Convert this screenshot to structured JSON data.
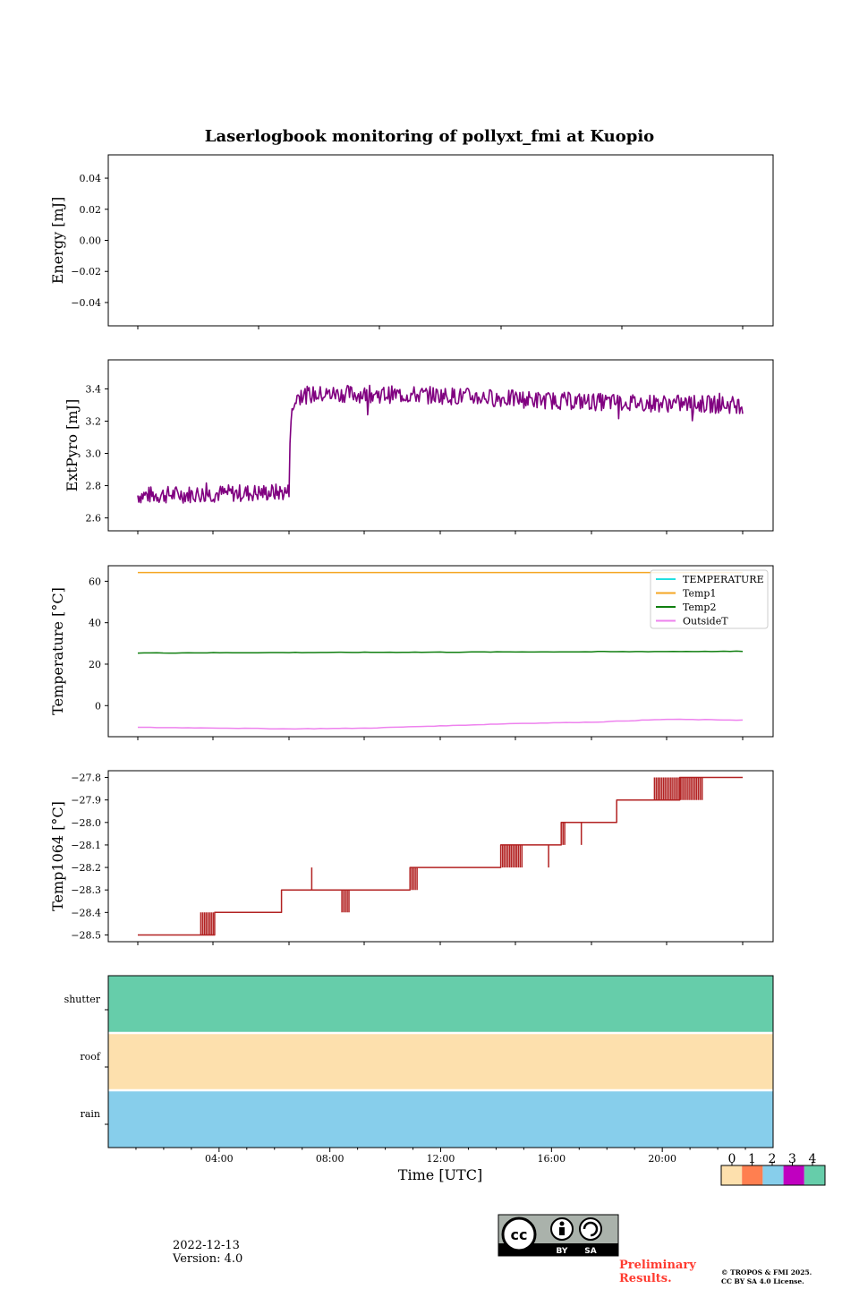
{
  "figure": {
    "title": "Laserlogbook monitoring of pollyxt_fmi at Kuopio",
    "date": "2022-12-13",
    "version": "Version: 4.0",
    "preliminary": "Preliminary Results.",
    "copyright_line1": "© TROPOS & FMI 2025.",
    "copyright_line2": "CC BY SA 4.0 License.",
    "license_badge": {
      "symbol": "cc",
      "labels": [
        "BY",
        "SA"
      ]
    }
  },
  "chart_data": [
    {
      "id": "energy",
      "type": "line",
      "title": "",
      "ylabel": "Energy [mJ]",
      "ylim": [
        -0.055,
        0.055
      ],
      "yticks": [
        0.04,
        0.02,
        0.0,
        -0.02,
        -0.04
      ],
      "yticklabels": [
        "0.04",
        "0.02",
        "0.00",
        "−0.02",
        "−0.04"
      ],
      "series": []
    },
    {
      "id": "extpyro",
      "type": "line",
      "ylabel": "ExtPyro [mJ]",
      "ylim": [
        2.52,
        3.58
      ],
      "yticks": [
        2.6,
        2.8,
        3.0,
        3.2,
        3.4
      ],
      "yticklabels": [
        "2.6",
        "2.8",
        "3.0",
        "3.2",
        "3.4"
      ],
      "series": [
        {
          "name": "ExtPyro",
          "color": "#800080",
          "x": [
            0,
            6,
            6.05,
            6.3,
            6.5,
            8,
            12,
            16,
            18,
            21,
            24
          ],
          "y": [
            2.74,
            2.76,
            3.2,
            3.35,
            3.36,
            3.37,
            3.36,
            3.33,
            3.32,
            3.31,
            3.3
          ],
          "noise": 0.055
        }
      ]
    },
    {
      "id": "temperature",
      "type": "line",
      "ylabel": "Temperature [°C]",
      "ylim": [
        -15,
        67.5
      ],
      "yticks": [
        60,
        40,
        20,
        0
      ],
      "yticklabels": [
        "60",
        "40",
        "20",
        "0"
      ],
      "legend": {
        "placement": "top-right",
        "entries": [
          "TEMPERATURE",
          "Temp1",
          "Temp2",
          "OutsideT"
        ]
      },
      "series": [
        {
          "name": "TEMPERATURE",
          "color": "#22e0e0",
          "x": [],
          "y": []
        },
        {
          "name": "Temp1",
          "color": "#f5a623",
          "x": [
            0,
            24
          ],
          "y": [
            64.2,
            64.2
          ]
        },
        {
          "name": "Temp2",
          "color": "#107f10",
          "x": [
            0,
            6,
            12,
            18,
            24
          ],
          "y": [
            25.4,
            25.6,
            25.8,
            26.0,
            26.2
          ]
        },
        {
          "name": "OutsideT",
          "color": "#ee82ee",
          "x": [
            0,
            3,
            6,
            9,
            12,
            15,
            18,
            21,
            24
          ],
          "y": [
            -10.5,
            -10.8,
            -11.2,
            -10.9,
            -9.8,
            -8.6,
            -8.0,
            -6.6,
            -7.0
          ]
        }
      ]
    },
    {
      "id": "temp1064",
      "type": "line",
      "ylabel": "Temp1064 [°C]",
      "ylim": [
        -28.53,
        -27.77
      ],
      "yticks": [
        -27.8,
        -27.9,
        -28.0,
        -28.1,
        -28.2,
        -28.3,
        -28.4,
        -28.5
      ],
      "yticklabels": [
        "−27.8",
        "−27.9",
        "−28.0",
        "−28.1",
        "−28.2",
        "−28.3",
        "−28.4",
        "−28.5"
      ],
      "series": [
        {
          "name": "Temp1064",
          "color": "#b22222",
          "x": [
            0,
            2.5,
            3.05,
            5.7,
            10.8,
            14.4,
            16.8,
            19.0,
            21.5,
            24
          ],
          "y": [
            -28.5,
            -28.5,
            -28.4,
            -28.3,
            -28.2,
            -28.1,
            -28.0,
            -27.9,
            -27.8,
            -27.8
          ],
          "flicker": [
            [
              2.5,
              3.05,
              -28.5,
              -28.4
            ],
            [
              8.1,
              8.4,
              -28.3,
              -28.4
            ],
            [
              10.8,
              11.1,
              -28.2,
              -28.3
            ],
            [
              14.4,
              15.3,
              -28.1,
              -28.2
            ],
            [
              16.8,
              17.0,
              -28.0,
              -28.1
            ],
            [
              20.5,
              22.4,
              -27.8,
              -27.9
            ]
          ],
          "spikes": [
            [
              6.9,
              -28.3,
              -28.2
            ],
            [
              16.3,
              -28.1,
              -28.2
            ],
            [
              17.6,
              -28.0,
              -28.1
            ]
          ]
        }
      ]
    },
    {
      "id": "status",
      "type": "heatmap",
      "categories": [
        "shutter",
        "roof",
        "rain"
      ],
      "values": [
        4,
        0,
        2
      ],
      "xlabel": "Time [UTC]",
      "xticklabels": [
        "04:00",
        "08:00",
        "12:00",
        "16:00",
        "20:00"
      ],
      "xtick_hours": [
        4,
        8,
        12,
        16,
        20
      ]
    }
  ],
  "colorbar": {
    "ticklabels": [
      "0",
      "1",
      "2",
      "3",
      "4"
    ],
    "colors": [
      "#fde0ad",
      "#ff7f50",
      "#87ceeb",
      "#c000c0",
      "#66cdaa"
    ]
  }
}
